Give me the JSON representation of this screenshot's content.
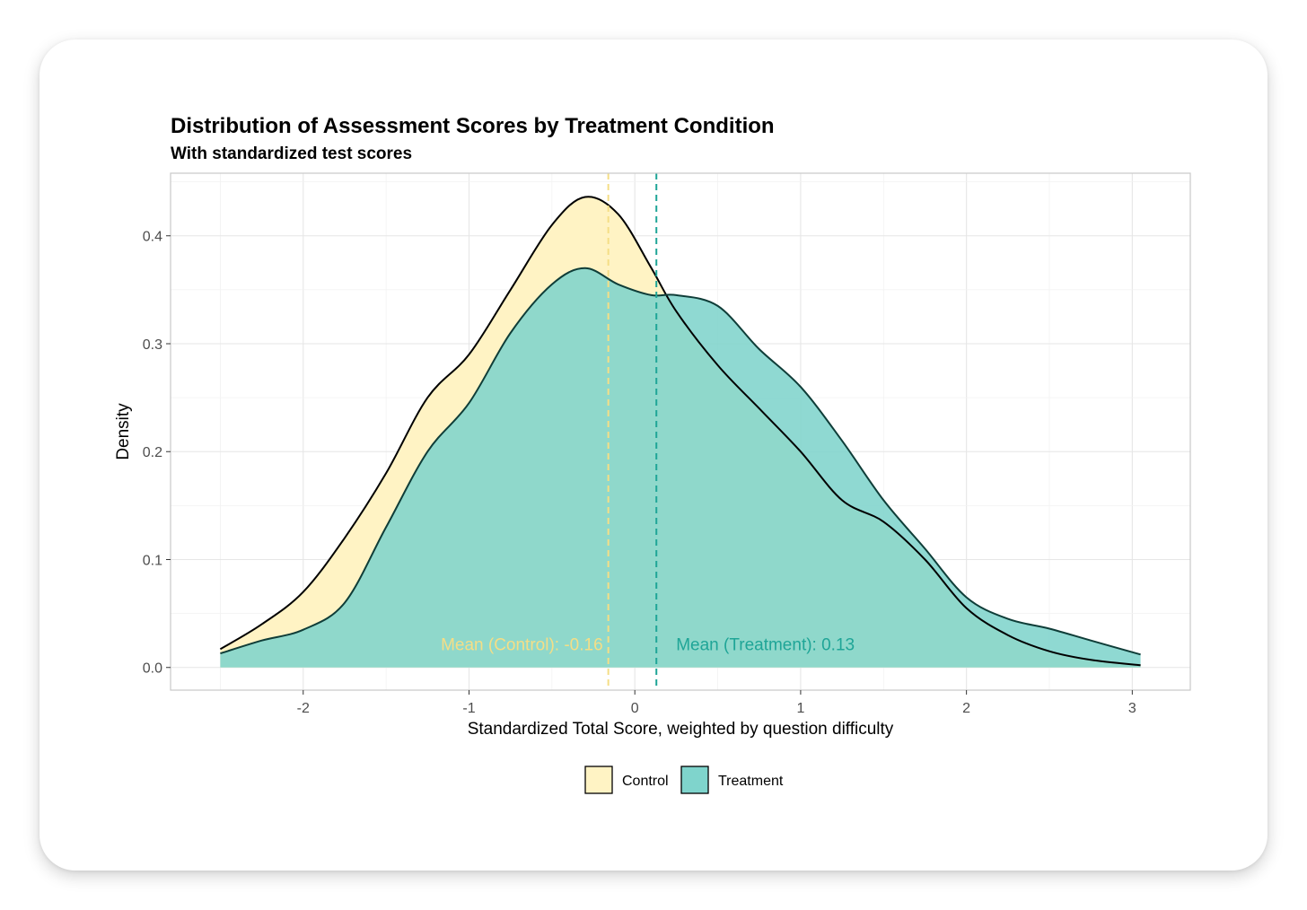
{
  "chart_data": {
    "type": "area",
    "title": "Distribution of Assessment Scores by Treatment Condition",
    "subtitle": "With standardized test scores",
    "xlabel": "Standardized Total Score, weighted by question difficulty",
    "ylabel": "Density",
    "xlim": [
      -2.8,
      3.35
    ],
    "ylim": [
      -0.021,
      0.458
    ],
    "x_ticks": [
      -2,
      -1,
      0,
      1,
      2,
      3
    ],
    "x_tick_labels": [
      "-2",
      "-1",
      "0",
      "1",
      "2",
      "3"
    ],
    "y_ticks": [
      0.0,
      0.1,
      0.2,
      0.3,
      0.4
    ],
    "y_tick_labels": [
      "0.0",
      "0.1",
      "0.2",
      "0.3",
      "0.4"
    ],
    "grid": true,
    "legend_position": "bottom",
    "series": [
      {
        "name": "Control",
        "color": "#FFF3C4",
        "x": [
          -2.5,
          -2.25,
          -2.0,
          -1.75,
          -1.5,
          -1.25,
          -1.0,
          -0.75,
          -0.5,
          -0.3,
          -0.1,
          0.1,
          0.25,
          0.5,
          0.75,
          1.0,
          1.25,
          1.5,
          1.75,
          2.0,
          2.25,
          2.5,
          2.75,
          3.05
        ],
        "values": [
          0.017,
          0.04,
          0.07,
          0.12,
          0.18,
          0.25,
          0.29,
          0.35,
          0.41,
          0.436,
          0.42,
          0.37,
          0.33,
          0.28,
          0.24,
          0.2,
          0.155,
          0.135,
          0.1,
          0.055,
          0.03,
          0.015,
          0.007,
          0.002
        ],
        "mean": -0.16,
        "mean_label": "Mean (Control): -0.16"
      },
      {
        "name": "Treatment",
        "color": "#7FD4CC",
        "x": [
          -2.5,
          -2.25,
          -2.0,
          -1.75,
          -1.5,
          -1.25,
          -1.0,
          -0.75,
          -0.5,
          -0.3,
          -0.1,
          0.1,
          0.25,
          0.5,
          0.75,
          1.0,
          1.25,
          1.5,
          1.75,
          2.0,
          2.25,
          2.5,
          2.75,
          3.05
        ],
        "values": [
          0.013,
          0.025,
          0.035,
          0.06,
          0.13,
          0.2,
          0.245,
          0.31,
          0.355,
          0.37,
          0.355,
          0.345,
          0.345,
          0.335,
          0.295,
          0.26,
          0.21,
          0.155,
          0.11,
          0.065,
          0.045,
          0.036,
          0.025,
          0.012
        ],
        "mean": 0.13,
        "mean_label": "Mean (Treatment): 0.13"
      }
    ],
    "annotation_colors": {
      "control": "#F5DE86",
      "treatment": "#1FA597"
    }
  }
}
